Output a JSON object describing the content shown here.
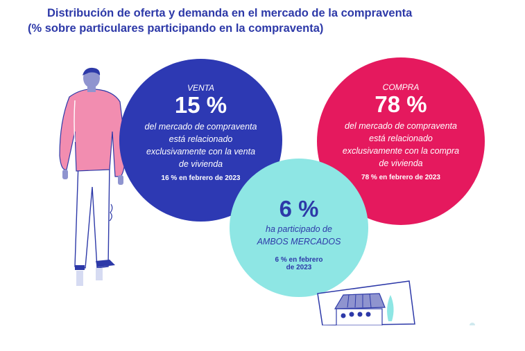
{
  "title": {
    "line1": "Distribución de oferta y demanda en el mercado de la compraventa",
    "line2": "(% sobre particulares participando en la compraventa)"
  },
  "venta": {
    "label": "VENTA",
    "value": "15 %",
    "desc1": "del mercado de compraventa",
    "desc2": "está relacionado",
    "desc3": "exclusivamente con la venta",
    "desc4": "de vivienda",
    "note": "16 % en febrero de 2023",
    "color": "#2d39b3"
  },
  "compra": {
    "label": "COMPRA",
    "value": "78 %",
    "desc1": "del mercado de compraventa",
    "desc2": "está relacionado",
    "desc3": "exclusivamente con la compra",
    "desc4": "de vivienda",
    "note": "78 % en febrero de 2023",
    "color": "#e5195e"
  },
  "ambos": {
    "value": "6 %",
    "desc1": "ha participado de",
    "desc2": "AMBOS MERCADOS",
    "note1": "6 % en febrero",
    "note2": "de 2023",
    "color": "#8ee6e4"
  },
  "illustrations": {
    "person": "person-illustration",
    "house_sign": "house-sign-illustration"
  }
}
